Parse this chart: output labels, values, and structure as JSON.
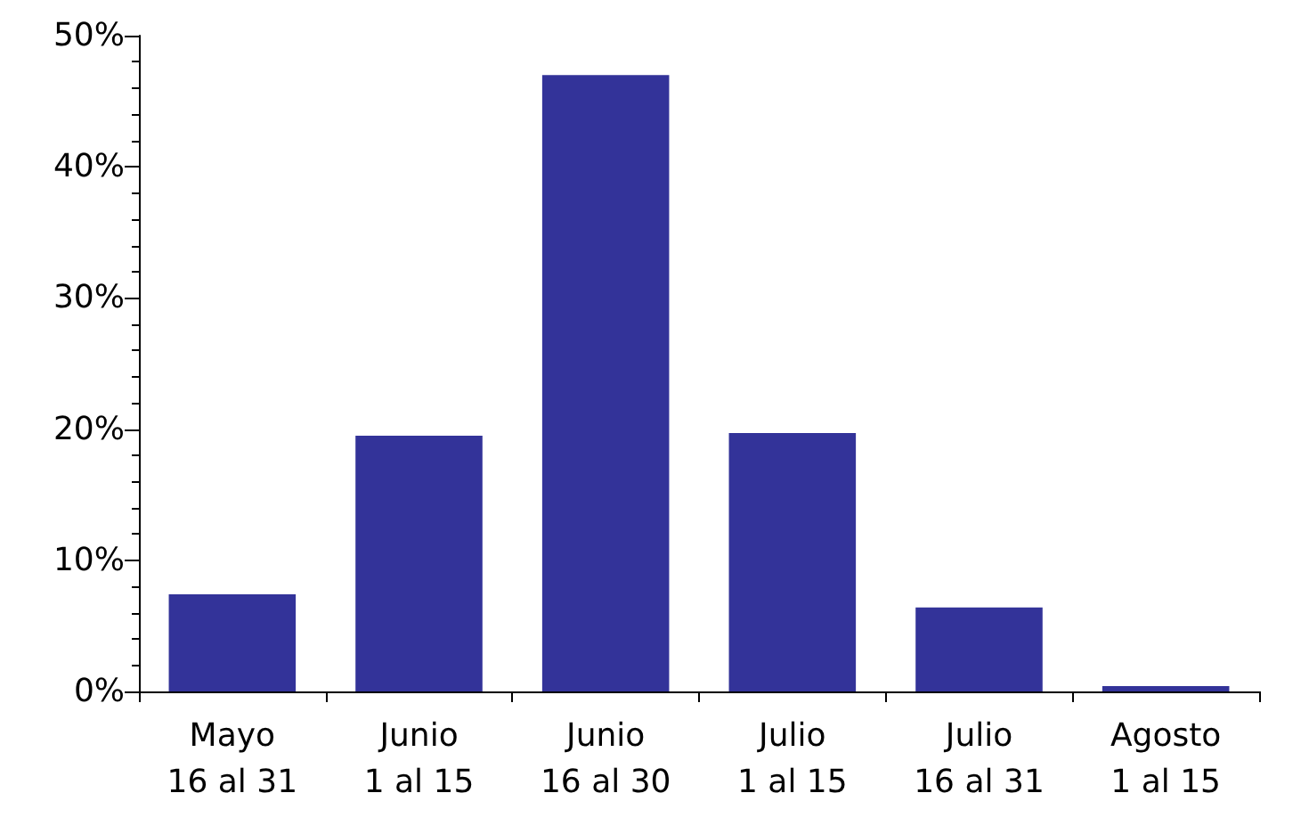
{
  "chart_data": {
    "type": "bar",
    "categories": [
      "Mayo\n16 al 31",
      "Junio\n1 al 15",
      "Junio\n16 al 30",
      "Julio\n1 al 15",
      "Julio\n16 al 31",
      "Agosto\n1 al 15"
    ],
    "values": [
      7.4,
      19.5,
      47.0,
      19.7,
      6.4,
      0.4
    ],
    "color": "#333399",
    "ylim": [
      0,
      50
    ],
    "yticks": [
      {
        "value": 0,
        "label": "0%"
      },
      {
        "value": 10,
        "label": "10%"
      },
      {
        "value": 20,
        "label": "20%"
      },
      {
        "value": 30,
        "label": "30%"
      },
      {
        "value": 40,
        "label": "40%"
      },
      {
        "value": 50,
        "label": "50%"
      }
    ],
    "grid": false
  }
}
